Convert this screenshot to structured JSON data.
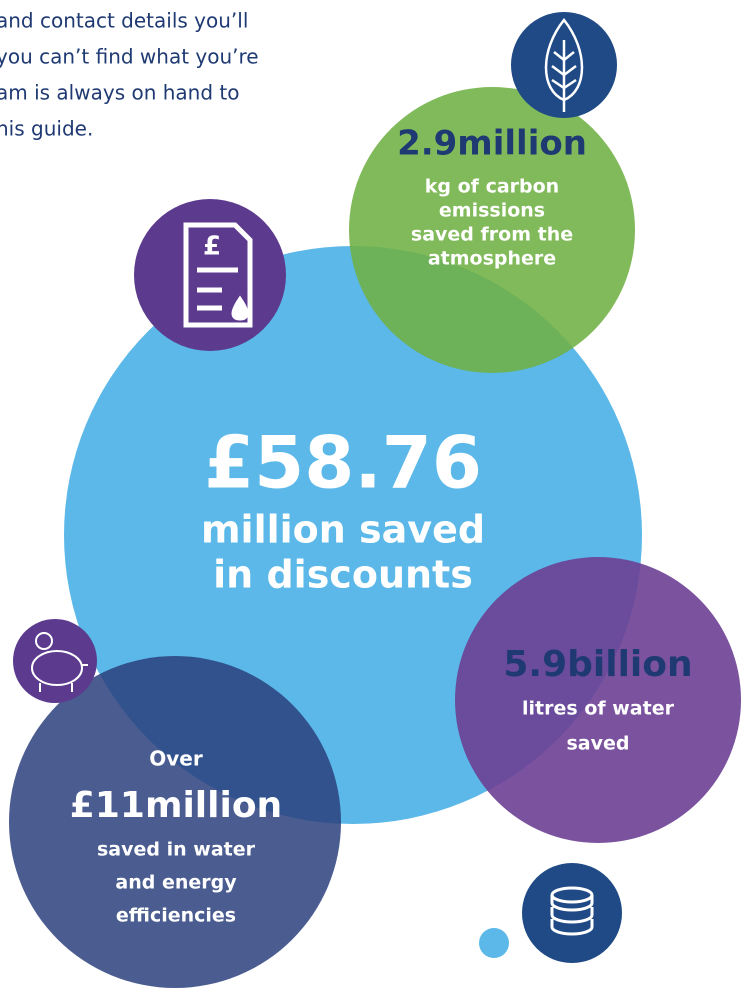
{
  "intro": {
    "lines": [
      "and contact details you’ll",
      "you can’t find what you’re",
      "am is always on hand to",
      "his guide."
    ]
  },
  "stats": [
    {
      "headline": "2.9million",
      "lines": [
        "kg of carbon",
        "emissions",
        "saved from the",
        "atmosphere"
      ]
    },
    {
      "headline": "£58.76",
      "lines": [
        "million saved",
        "in discounts"
      ]
    },
    {
      "headline": "5.9billion",
      "lines": [
        "litres of water",
        "saved"
      ]
    },
    {
      "prefix": "Over",
      "headline": "£11million",
      "lines": [
        "saved in water",
        "and energy",
        "efficiencies"
      ]
    }
  ]
}
